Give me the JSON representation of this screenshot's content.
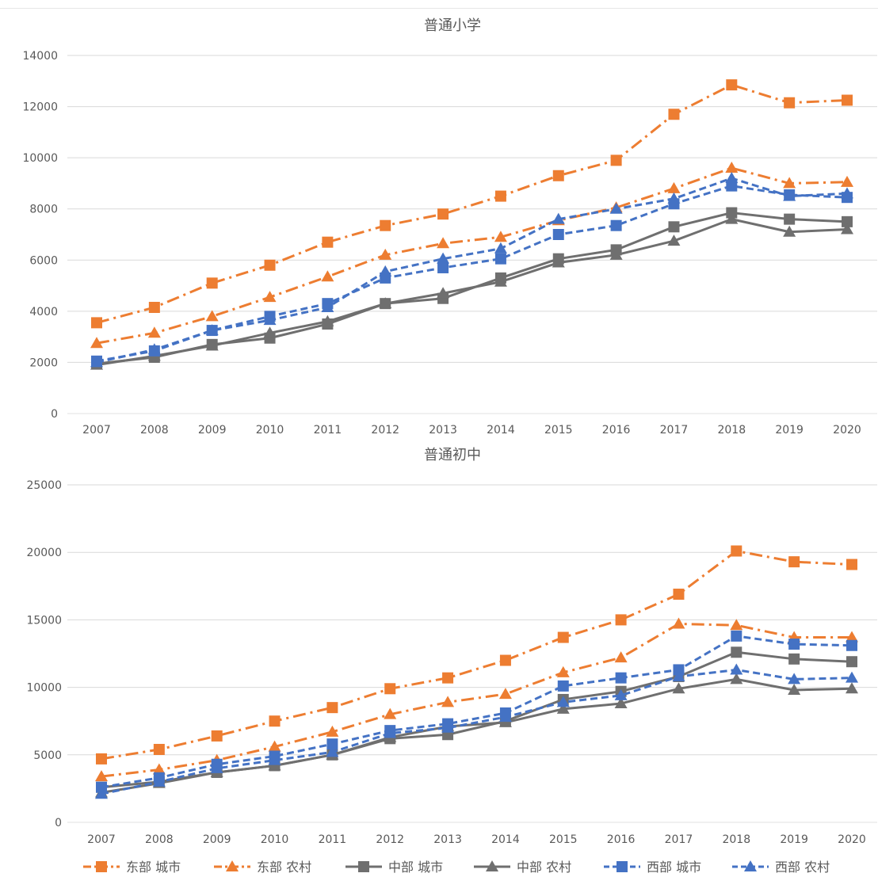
{
  "colors": {
    "east": "#ED7D31",
    "central": "#6F6F6F",
    "west": "#4472C4",
    "grid": "#d9d9d9",
    "text": "#595959"
  },
  "chart_data": [
    {
      "type": "line",
      "title": "普通小学",
      "categories": [
        "2007",
        "2008",
        "2009",
        "2010",
        "2011",
        "2012",
        "2013",
        "2014",
        "2015",
        "2016",
        "2017",
        "2018",
        "2019",
        "2020"
      ],
      "ylim": [
        0,
        14000
      ],
      "yticks": [
        "0",
        "2000",
        "4000",
        "6000",
        "8000",
        "10000",
        "12000",
        "14000"
      ],
      "grid": true,
      "series": [
        {
          "name": "东部 城市",
          "values": [
            3550,
            4150,
            5100,
            5800,
            6700,
            7350,
            7800,
            8500,
            9300,
            9900,
            11700,
            12850,
            12150,
            12250
          ]
        },
        {
          "name": "东部 农村",
          "values": [
            2750,
            3150,
            3800,
            4550,
            5350,
            6200,
            6650,
            6900,
            7550,
            8050,
            8800,
            9600,
            9000,
            9050
          ]
        },
        {
          "name": "中部 城市",
          "values": [
            1950,
            2200,
            2700,
            2950,
            3500,
            4300,
            4500,
            5300,
            6050,
            6400,
            7300,
            7850,
            7600,
            7500
          ]
        },
        {
          "name": "中部 农村",
          "values": [
            1900,
            2250,
            2650,
            3150,
            3600,
            4300,
            4700,
            5150,
            5900,
            6200,
            6750,
            7600,
            7100,
            7200
          ]
        },
        {
          "name": "西部 城市",
          "values": [
            2050,
            2450,
            3250,
            3800,
            4300,
            5300,
            5700,
            6050,
            7000,
            7350,
            8200,
            8900,
            8550,
            8450
          ]
        },
        {
          "name": "西部 农村",
          "values": [
            2000,
            2500,
            3250,
            3650,
            4150,
            5550,
            6050,
            6450,
            7600,
            8000,
            8400,
            9200,
            8500,
            8600
          ]
        }
      ]
    },
    {
      "type": "line",
      "title": "普通初中",
      "categories": [
        "2007",
        "2008",
        "2009",
        "2010",
        "2011",
        "2012",
        "2013",
        "2014",
        "2015",
        "2016",
        "2017",
        "2018",
        "2019",
        "2020"
      ],
      "ylim": [
        0,
        25000
      ],
      "yticks": [
        "0",
        "5000",
        "10000",
        "15000",
        "20000",
        "25000"
      ],
      "grid": true,
      "series": [
        {
          "name": "东部 城市",
          "values": [
            4700,
            5400,
            6400,
            7500,
            8500,
            9900,
            10700,
            12000,
            13700,
            15000,
            16900,
            20100,
            19300,
            19100
          ]
        },
        {
          "name": "东部 农村",
          "values": [
            3400,
            3900,
            4600,
            5600,
            6700,
            8000,
            8900,
            9500,
            11100,
            12200,
            14700,
            14600,
            13700,
            13700
          ]
        },
        {
          "name": "中部 城市",
          "values": [
            2600,
            3000,
            3700,
            4200,
            5000,
            6200,
            6500,
            7500,
            9100,
            9700,
            10800,
            12600,
            12100,
            11900
          ]
        },
        {
          "name": "中部 农村",
          "values": [
            2200,
            2900,
            3700,
            4200,
            5000,
            6300,
            7100,
            7400,
            8400,
            8800,
            9900,
            10600,
            9800,
            9900
          ]
        },
        {
          "name": "西部 城市",
          "values": [
            2600,
            3300,
            4300,
            4900,
            5800,
            6800,
            7300,
            8100,
            10100,
            10700,
            11300,
            13800,
            13200,
            13100
          ]
        },
        {
          "name": "西部 农村",
          "values": [
            2100,
            3000,
            4000,
            4600,
            5200,
            6600,
            7000,
            7800,
            8900,
            9400,
            10800,
            11300,
            10600,
            10700
          ]
        }
      ]
    }
  ],
  "legend": [
    {
      "label": "东部 城市",
      "color_key": "east",
      "dash": "dashdot",
      "marker": "square"
    },
    {
      "label": "东部 农村",
      "color_key": "east",
      "dash": "dashdot",
      "marker": "triangle"
    },
    {
      "label": "中部 城市",
      "color_key": "central",
      "dash": "solid",
      "marker": "square"
    },
    {
      "label": "中部 农村",
      "color_key": "central",
      "dash": "solid",
      "marker": "triangle"
    },
    {
      "label": "西部 城市",
      "color_key": "west",
      "dash": "dash",
      "marker": "square"
    },
    {
      "label": "西部 农村",
      "color_key": "west",
      "dash": "dash",
      "marker": "triangle"
    }
  ]
}
